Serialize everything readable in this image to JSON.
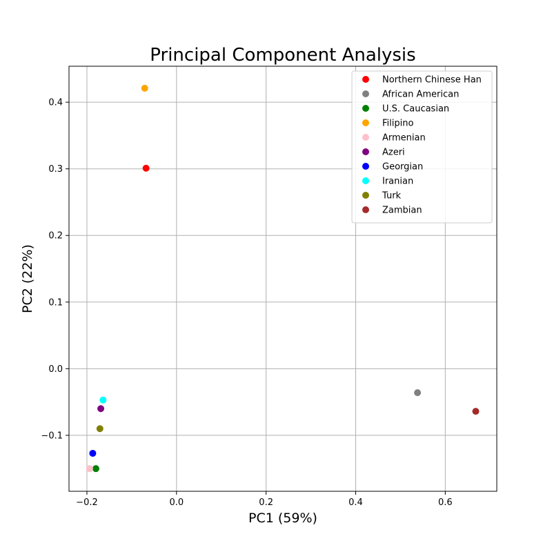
{
  "chart_data": {
    "type": "scatter",
    "title": "Principal Component Analysis",
    "xlabel": "PC1 (59%)",
    "ylabel": "PC2 (22%)",
    "xlim": [
      -0.24,
      0.715
    ],
    "ylim": [
      -0.184,
      0.454
    ],
    "xticks": [
      -0.2,
      0.0,
      0.2,
      0.4,
      0.6
    ],
    "xtick_labels": [
      "−0.2",
      "0.0",
      "0.2",
      "0.4",
      "0.6"
    ],
    "yticks": [
      -0.1,
      0.0,
      0.1,
      0.2,
      0.3,
      0.4
    ],
    "ytick_labels": [
      "−0.1",
      "0.0",
      "0.1",
      "0.2",
      "0.3",
      "0.4"
    ],
    "grid": true,
    "legend_position": "top-right",
    "series": [
      {
        "name": "Northern Chinese Han",
        "color": "#ff0000",
        "points": [
          [
            -0.068,
            0.301
          ]
        ]
      },
      {
        "name": "African American",
        "color": "#808080",
        "points": [
          [
            0.538,
            -0.036
          ]
        ]
      },
      {
        "name": "U.S. Caucasian",
        "color": "#008000",
        "points": [
          [
            -0.18,
            -0.15
          ]
        ]
      },
      {
        "name": "Filipino",
        "color": "#ffa500",
        "points": [
          [
            -0.071,
            0.421
          ]
        ]
      },
      {
        "name": "Armenian",
        "color": "#ffc0cb",
        "points": [
          [
            -0.194,
            -0.15
          ]
        ]
      },
      {
        "name": "Azeri",
        "color": "#800080",
        "points": [
          [
            -0.169,
            -0.06
          ]
        ]
      },
      {
        "name": "Georgian",
        "color": "#0000ff",
        "points": [
          [
            -0.187,
            -0.127
          ]
        ]
      },
      {
        "name": "Iranian",
        "color": "#00ffff",
        "points": [
          [
            -0.164,
            -0.047
          ]
        ]
      },
      {
        "name": "Turk",
        "color": "#808000",
        "points": [
          [
            -0.171,
            -0.09
          ]
        ]
      },
      {
        "name": "Zambian",
        "color": "#a52a2a",
        "points": [
          [
            0.668,
            -0.064
          ]
        ]
      }
    ]
  }
}
